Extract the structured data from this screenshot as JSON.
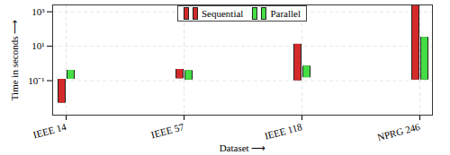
{
  "chart_data": {
    "type": "bar",
    "x_label": "Dataset ⟶",
    "y_label": "Time in seconds ⟶",
    "categories": [
      "IEEE 14",
      "IEEE 57",
      "IEEE 118",
      "NPRG 246"
    ],
    "series": [
      {
        "name": "Sequential",
        "color": "#d42a2a",
        "values": [
          [
            0.005,
            0.12
          ],
          [
            0.13,
            0.45
          ],
          [
            0.1,
            13
          ],
          [
            0.11,
            2500
          ]
        ]
      },
      {
        "name": "Parallel",
        "color": "#44dd44",
        "values": [
          [
            0.12,
            0.4
          ],
          [
            0.11,
            0.38
          ],
          [
            0.15,
            0.7
          ],
          [
            0.11,
            33
          ]
        ]
      }
    ],
    "log": "y",
    "ylim": [
      0.001,
      2500
    ],
    "yticks": [
      {
        "value": 0.1,
        "label": "10⁻¹"
      },
      {
        "value": 10,
        "label": "10¹"
      },
      {
        "value": 1000,
        "label": "10³"
      }
    ],
    "grid": true,
    "legend": "top"
  }
}
